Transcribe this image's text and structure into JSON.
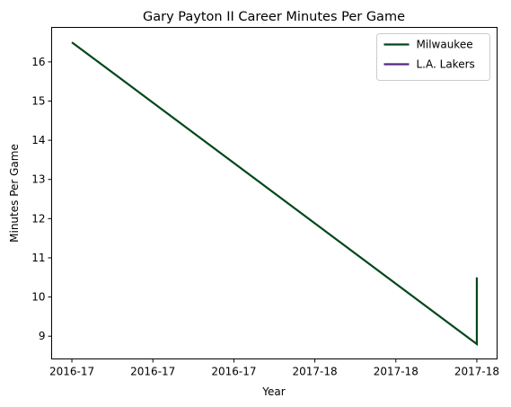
{
  "chart_data": {
    "type": "line",
    "title": "Gary Payton II Career Minutes Per Game",
    "xlabel": "Year",
    "ylabel": "Minutes Per Game",
    "x_tick_labels": [
      "2016-17",
      "2016-17",
      "2016-17",
      "2017-18",
      "2017-18",
      "2017-18"
    ],
    "y_ticks": [
      9,
      10,
      11,
      12,
      13,
      14,
      15,
      16
    ],
    "xlim": [
      -0.05,
      1.05
    ],
    "ylim": [
      8.42,
      16.88
    ],
    "legend_position": "top-right",
    "grid": false,
    "series": [
      {
        "name": "Milwaukee",
        "color": "#00471b",
        "points": [
          {
            "x": 0,
            "y": 16.5
          },
          {
            "x": 1,
            "y": 8.8
          },
          {
            "x": 1,
            "y": 10.5
          }
        ]
      },
      {
        "name": "L.A. Lakers",
        "color": "#552583",
        "points": []
      }
    ]
  }
}
